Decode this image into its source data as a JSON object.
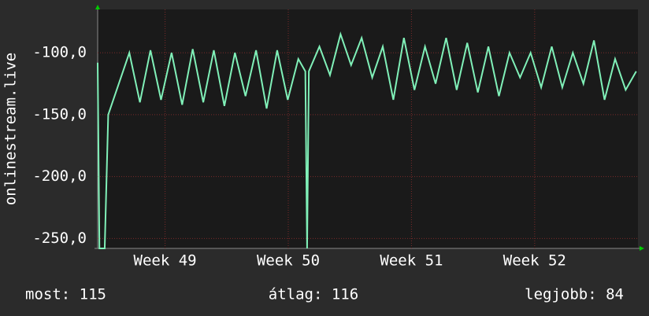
{
  "chart_data": {
    "type": "line",
    "y_label": "onlinestream.live",
    "x": [
      0,
      0.1,
      0.4,
      0.6,
      1.2,
      1.8,
      2.4,
      3.0,
      3.6,
      4.2,
      4.8,
      5.4,
      6.0,
      6.6,
      7.2,
      7.8,
      8.4,
      9.0,
      9.6,
      10.2,
      10.8,
      11.4,
      11.8,
      11.9,
      12.0,
      12.6,
      13.2,
      13.8,
      14.4,
      15.0,
      15.6,
      16.2,
      16.8,
      17.4,
      18.0,
      18.6,
      19.2,
      19.8,
      20.4,
      21.0,
      21.6,
      22.2,
      22.8,
      23.4,
      24.0,
      24.6,
      25.2,
      25.8,
      26.4,
      27.0,
      27.6,
      28.2,
      28.8,
      29.4,
      30.0,
      30.6
    ],
    "values": [
      -108,
      -258,
      -258,
      -150,
      -125,
      -100,
      -140,
      -98,
      -138,
      -100,
      -142,
      -97,
      -140,
      -98,
      -143,
      -100,
      -135,
      -98,
      -145,
      -98,
      -138,
      -105,
      -115,
      -258,
      -115,
      -95,
      -118,
      -85,
      -110,
      -88,
      -120,
      -95,
      -138,
      -88,
      -130,
      -95,
      -125,
      -88,
      -130,
      -92,
      -132,
      -95,
      -135,
      -100,
      -120,
      -100,
      -128,
      -95,
      -128,
      -100,
      -125,
      -90,
      -138,
      -105,
      -130,
      -115
    ],
    "color": "#80f0b8",
    "xlim": [
      0,
      30.7
    ],
    "xticks": [
      {
        "value": 3.83,
        "label": "Week 49"
      },
      {
        "value": 10.83,
        "label": "Week 50"
      },
      {
        "value": 17.83,
        "label": "Week 51"
      },
      {
        "value": 24.83,
        "label": "Week 52"
      }
    ],
    "ylim": [
      -258,
      -65
    ],
    "yticks": [
      {
        "value": -100,
        "label": "-100,0"
      },
      {
        "value": -150,
        "label": "-150,0"
      },
      {
        "value": -200,
        "label": "-200,0"
      },
      {
        "value": -250,
        "label": "-250,0"
      }
    ],
    "grid": true,
    "stats": [
      "most: 115",
      "átlag: 116",
      "legjobb: 84"
    ]
  }
}
